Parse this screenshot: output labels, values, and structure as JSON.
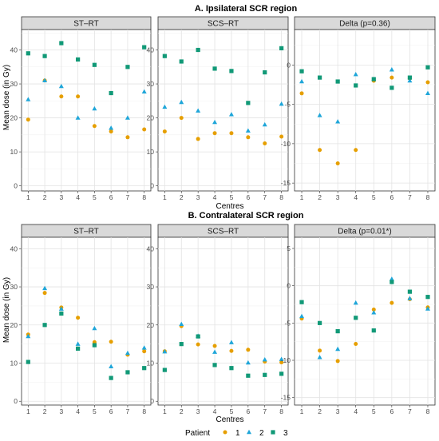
{
  "figure": {
    "ylabel": "Mean dose (in Gy)",
    "xlabel": "Centres",
    "legend_title": "Patient",
    "legend_placement": "bottom"
  },
  "colors": {
    "1": "#E69F00",
    "2": "#1FA6D9",
    "3": "#119977"
  },
  "series_meta": [
    {
      "key": "1",
      "name": "1",
      "marker": "circle"
    },
    {
      "key": "2",
      "name": "2",
      "marker": "triangle"
    },
    {
      "key": "3",
      "name": "3",
      "marker": "square"
    }
  ],
  "chart_data": [
    {
      "type": "scatter",
      "section": "A. Ipsilateral SCR region",
      "panel": "ST–RT",
      "x": [
        1,
        2,
        3,
        4,
        5,
        6,
        7,
        8
      ],
      "ylim": [
        -1.5,
        46
      ],
      "yticks": [
        0,
        10,
        20,
        30,
        40
      ],
      "series": [
        {
          "name": "1",
          "values": [
            19.5,
            31,
            26.3,
            26.3,
            17.6,
            16,
            14.3,
            16.6
          ]
        },
        {
          "name": "2",
          "values": [
            25.4,
            31,
            29.3,
            20,
            22.7,
            17,
            20,
            27.7
          ]
        },
        {
          "name": "3",
          "values": [
            39,
            38.2,
            42,
            37.2,
            35.6,
            27.3,
            35,
            40.8
          ]
        }
      ]
    },
    {
      "type": "scatter",
      "section": "A. Ipsilateral SCR region",
      "panel": "SCS–RT",
      "x": [
        1,
        2,
        3,
        4,
        5,
        6,
        7,
        8
      ],
      "ylim": [
        -1.5,
        46
      ],
      "yticks": [
        0,
        10,
        20,
        30,
        40
      ],
      "series": [
        {
          "name": "1",
          "values": [
            16,
            20,
            13.8,
            15.5,
            15.5,
            14.3,
            12.5,
            14.5
          ]
        },
        {
          "name": "2",
          "values": [
            23.2,
            24.6,
            22.1,
            18.7,
            21,
            16.2,
            18,
            24.1
          ]
        },
        {
          "name": "3",
          "values": [
            38.2,
            36.6,
            40,
            34.5,
            33.8,
            24.4,
            33.4,
            40.5
          ]
        }
      ]
    },
    {
      "type": "scatter",
      "section": "A. Ipsilateral SCR region",
      "panel": "Delta (p=0.36)",
      "x": [
        1,
        2,
        3,
        4,
        5,
        6,
        7,
        8
      ],
      "ylim": [
        -16,
        4.5
      ],
      "yticks": [
        -15,
        -10,
        -5,
        0
      ],
      "series": [
        {
          "name": "1",
          "values": [
            -3.6,
            -10.8,
            -12.5,
            -10.8,
            -2,
            -1.6,
            -1.7,
            -2.2
          ]
        },
        {
          "name": "2",
          "values": [
            -2.1,
            -6.4,
            -7.2,
            -1.2,
            -1.8,
            -0.6,
            -2,
            -3.6
          ]
        },
        {
          "name": "3",
          "values": [
            -0.8,
            -1.6,
            -2.1,
            -2.6,
            -1.8,
            -2.9,
            -1.6,
            -0.3
          ]
        }
      ]
    },
    {
      "type": "scatter",
      "section": "B. Contralateral SCR region",
      "panel": "ST–RT",
      "x": [
        1,
        2,
        3,
        4,
        5,
        6,
        7,
        8
      ],
      "ylim": [
        -1,
        43
      ],
      "yticks": [
        0,
        10,
        20,
        30,
        40
      ],
      "series": [
        {
          "name": "1",
          "values": [
            17.5,
            28.4,
            24.6,
            21.9,
            15.5,
            15.6,
            12.2,
            13.1
          ]
        },
        {
          "name": "2",
          "values": [
            17,
            29.6,
            24.2,
            15,
            19.1,
            9.1,
            12.6,
            14
          ]
        },
        {
          "name": "3",
          "values": [
            10.3,
            20,
            23,
            13.8,
            14.7,
            6.1,
            7.6,
            8.7
          ]
        }
      ]
    },
    {
      "type": "scatter",
      "section": "B. Contralateral SCR region",
      "panel": "SCS–RT",
      "x": [
        1,
        2,
        3,
        4,
        5,
        6,
        7,
        8
      ],
      "ylim": [
        -1,
        43
      ],
      "yticks": [
        0,
        10,
        20,
        30,
        40
      ],
      "series": [
        {
          "name": "1",
          "values": [
            13.1,
            19.7,
            14.9,
            14.5,
            13.2,
            13.5,
            10.4,
            10.2
          ]
        },
        {
          "name": "2",
          "values": [
            13,
            20.2,
            17.1,
            12.9,
            15.4,
            10.1,
            10.9,
            11
          ]
        },
        {
          "name": "3",
          "values": [
            8.2,
            15,
            17,
            9.5,
            8.7,
            6.7,
            6.9,
            7.2
          ]
        }
      ]
    },
    {
      "type": "scatter",
      "section": "B. Contralateral SCR region",
      "panel": "Delta (p=0.01*)",
      "x": [
        1,
        2,
        3,
        4,
        5,
        6,
        7,
        8
      ],
      "ylim": [
        -16,
        6.5
      ],
      "yticks": [
        -15,
        -10,
        -5,
        0,
        5
      ],
      "series": [
        {
          "name": "1",
          "values": [
            -4.4,
            -8.7,
            -10.1,
            -7.8,
            -3.2,
            -2.3,
            -1.8,
            -2.9
          ]
        },
        {
          "name": "2",
          "values": [
            -4.1,
            -9.6,
            -8.5,
            -2.3,
            -3.6,
            0.9,
            -1.7,
            -3.1
          ]
        },
        {
          "name": "3",
          "values": [
            -2.2,
            -5,
            -6.1,
            -4.3,
            -6,
            0.5,
            -0.8,
            -1.5
          ]
        }
      ]
    }
  ]
}
